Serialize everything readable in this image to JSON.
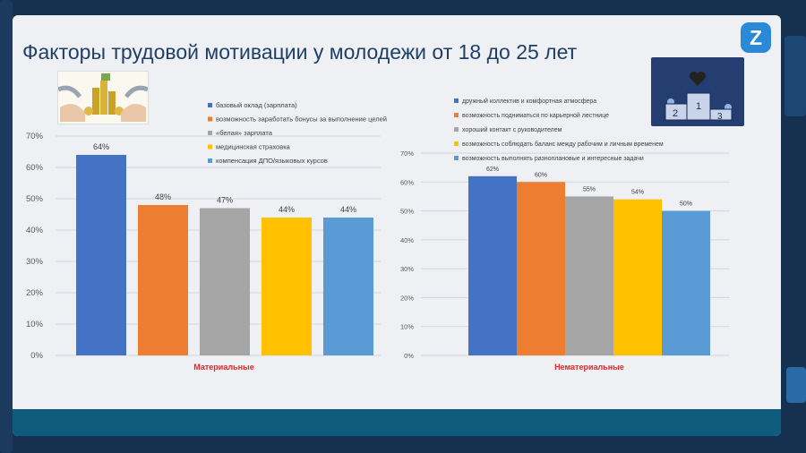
{
  "slide": {
    "title": "Факторы трудовой мотивации у молодежи от 18 до 25 лет",
    "logo_glyph": "Z",
    "accent": "#0f5b7e"
  },
  "chart_data": [
    {
      "type": "bar",
      "xlabel": "Материальные",
      "ylim": [
        0,
        70
      ],
      "yticks": [
        "70%",
        "60%",
        "50%",
        "40%",
        "30%",
        "20%",
        "10%",
        "0%"
      ],
      "legend_position": "top-right",
      "series": [
        {
          "name": "базовый оклад (зарплата)",
          "value": 64,
          "label": "64%",
          "color": "#4472c4"
        },
        {
          "name": "возможность заработать бонусы за выполнение целей",
          "value": 48,
          "label": "48%",
          "color": "#ed7d31"
        },
        {
          "name": "«белая» зарплата",
          "value": 47,
          "label": "47%",
          "color": "#a5a5a5"
        },
        {
          "name": "медицинская страховка",
          "value": 44,
          "label": "44%",
          "color": "#ffc000"
        },
        {
          "name": "компенсация ДПО/языковых курсов",
          "value": 44,
          "label": "44%",
          "color": "#5b9bd5"
        }
      ]
    },
    {
      "type": "bar",
      "xlabel": "Нематериальные",
      "ylim": [
        0,
        70
      ],
      "yticks": [
        "70%",
        "60%",
        "50%",
        "40%",
        "30%",
        "20%",
        "10%",
        "0%"
      ],
      "legend_position": "top",
      "series": [
        {
          "name": "дружный коллектив и комфортная атмосфера",
          "value": 62,
          "label": "62%",
          "color": "#4472c4"
        },
        {
          "name": "возможность подниматься по карьерной лестнице",
          "value": 60,
          "label": "60%",
          "color": "#ed7d31"
        },
        {
          "name": "хороший контакт с руководителем",
          "value": 55,
          "label": "55%",
          "color": "#a5a5a5"
        },
        {
          "name": "возможность соблюдать баланс между рабочим и личным временем",
          "value": 54,
          "label": "54%",
          "color": "#ffc000"
        },
        {
          "name": "возможность выполнять разноплановые и интересные задачи",
          "value": 50,
          "label": "50%",
          "color": "#5b9bd5"
        }
      ]
    }
  ],
  "podium": {
    "numbers": [
      "1",
      "2",
      "3"
    ]
  }
}
